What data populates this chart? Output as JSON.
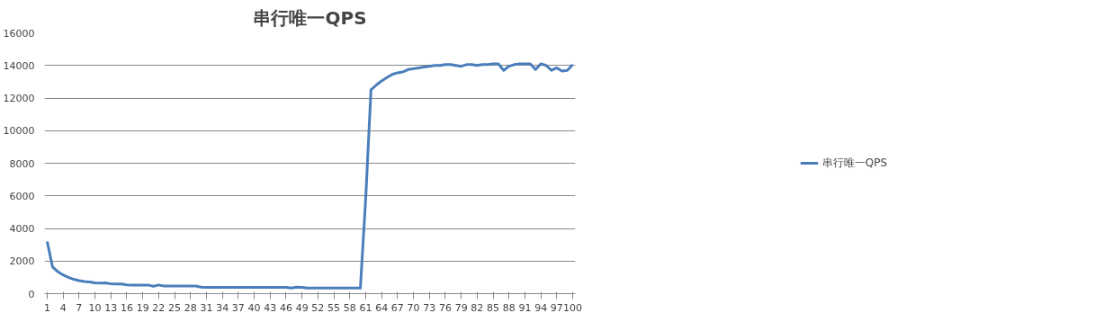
{
  "chart_data": {
    "type": "line",
    "title": "串行唯一QPS",
    "categories": [
      "1",
      null,
      null,
      "4",
      null,
      null,
      "7",
      null,
      null,
      "10",
      null,
      null,
      "13",
      null,
      null,
      "16",
      null,
      null,
      "19",
      null,
      null,
      "22",
      null,
      null,
      "25",
      null,
      null,
      "28",
      null,
      null,
      "31",
      null,
      null,
      "34",
      null,
      null,
      "37",
      null,
      null,
      "40",
      null,
      null,
      "43",
      null,
      null,
      "46",
      null,
      null,
      "49",
      null,
      null,
      "52",
      null,
      null,
      "55",
      null,
      null,
      "58",
      null,
      null,
      "61",
      null,
      null,
      "64",
      null,
      null,
      "67",
      null,
      null,
      "70",
      null,
      null,
      "73",
      null,
      null,
      "76",
      null,
      null,
      "79",
      null,
      null,
      "82",
      null,
      null,
      "85",
      null,
      null,
      "88",
      null,
      null,
      "91",
      null,
      null,
      "94",
      null,
      null,
      "97",
      null,
      null,
      "100"
    ],
    "series": [
      {
        "name": "串行唯一QPS",
        "color": "#4a7ebb",
        "values": [
          3200,
          1650,
          1350,
          1150,
          1000,
          880,
          800,
          740,
          720,
          660,
          650,
          660,
          600,
          590,
          590,
          540,
          530,
          530,
          530,
          530,
          460,
          530,
          470,
          470,
          470,
          470,
          470,
          470,
          470,
          400,
          390,
          390,
          390,
          390,
          390,
          390,
          390,
          390,
          390,
          390,
          390,
          390,
          390,
          390,
          390,
          390,
          340,
          400,
          390,
          340,
          340,
          340,
          340,
          340,
          340,
          340,
          340,
          340,
          340,
          340,
          5800,
          12500,
          12800,
          13050,
          13250,
          13450,
          13550,
          13600,
          13750,
          13800,
          13850,
          13900,
          13950,
          14000,
          14000,
          14050,
          14050,
          14000,
          13950,
          14050,
          14050,
          14000,
          14050,
          14050,
          14100,
          14100,
          13700,
          13950,
          14050,
          14100,
          14100,
          14100,
          13750,
          14100,
          14000,
          13700,
          13850,
          13650,
          13700,
          14050
        ]
      }
    ],
    "ylim": [
      0,
      16000
    ],
    "yticks": [
      0,
      2000,
      4000,
      6000,
      8000,
      10000,
      12000,
      14000,
      16000
    ],
    "grid": "y",
    "legend": "right",
    "marker": "none",
    "line_style": "solid"
  }
}
